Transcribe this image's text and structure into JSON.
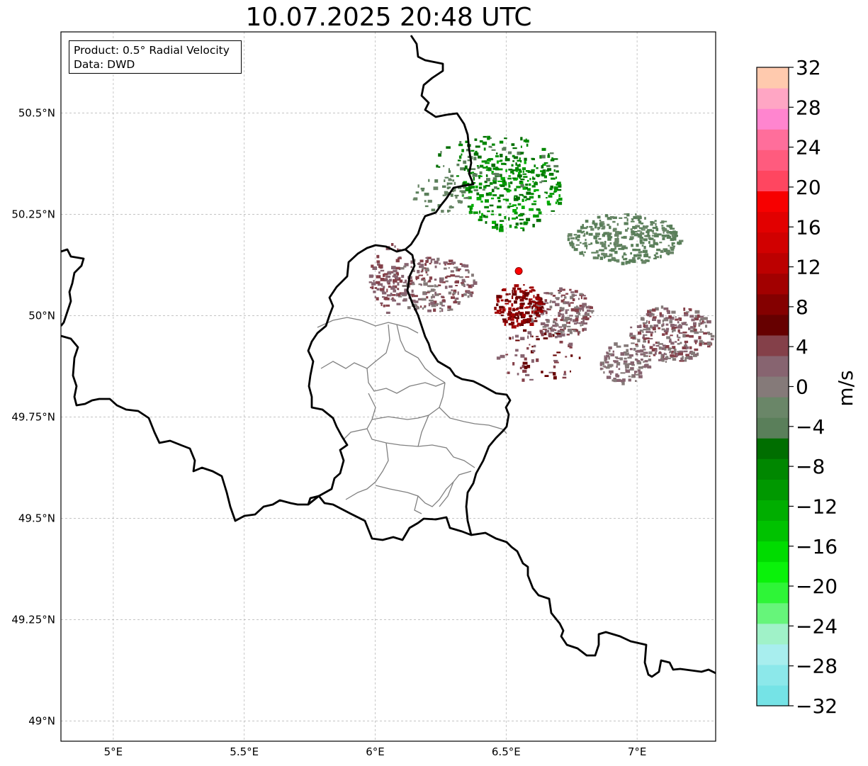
{
  "title": "10.07.2025 20:48 UTC",
  "info": {
    "product": "Product: 0.5° Radial Velocity",
    "data": "Data: DWD"
  },
  "map": {
    "lon_range": [
      4.8,
      7.3
    ],
    "lat_range": [
      48.95,
      50.7
    ],
    "x_ticks": [
      {
        "value": 5.0,
        "label": "5°E"
      },
      {
        "value": 5.5,
        "label": "5.5°E"
      },
      {
        "value": 6.0,
        "label": "6°E"
      },
      {
        "value": 6.5,
        "label": "6.5°E"
      },
      {
        "value": 7.0,
        "label": "7°E"
      }
    ],
    "y_ticks": [
      {
        "value": 50.5,
        "label": "50.5°N"
      },
      {
        "value": 50.25,
        "label": "50.25°N"
      },
      {
        "value": 50.0,
        "label": "50°N"
      },
      {
        "value": 49.75,
        "label": "49.75°N"
      },
      {
        "value": 49.5,
        "label": "49.5°N"
      },
      {
        "value": 49.25,
        "label": "49.25°N"
      },
      {
        "value": 49.0,
        "label": "49°N"
      }
    ],
    "radar_site": {
      "lon": 6.548,
      "lat": 50.11,
      "color": "#ff0000"
    },
    "grid": true
  },
  "colorbar": {
    "label": "m/s",
    "range": [
      -32,
      32
    ],
    "ticks": [
      {
        "value": 32,
        "label": "32"
      },
      {
        "value": 28,
        "label": "28"
      },
      {
        "value": 24,
        "label": "24"
      },
      {
        "value": 20,
        "label": "20"
      },
      {
        "value": 16,
        "label": "16"
      },
      {
        "value": 12,
        "label": "12"
      },
      {
        "value": 8,
        "label": "8"
      },
      {
        "value": 4,
        "label": "4"
      },
      {
        "value": 0,
        "label": "0"
      },
      {
        "value": -4,
        "label": "−4"
      },
      {
        "value": -8,
        "label": "−8"
      },
      {
        "value": -12,
        "label": "−12"
      },
      {
        "value": -16,
        "label": "−16"
      },
      {
        "value": -20,
        "label": "−20"
      },
      {
        "value": -24,
        "label": "−24"
      },
      {
        "value": -28,
        "label": "−28"
      },
      {
        "value": -32,
        "label": "−32"
      }
    ],
    "colors": [
      "#75e3e6",
      "#8ce8ea",
      "#a8eeee",
      "#a0f2c8",
      "#66f57a",
      "#2ef537",
      "#0af20a",
      "#00dc00",
      "#00c200",
      "#00ae00",
      "#009800",
      "#008700",
      "#006e00",
      "#5a7f5a",
      "#6a8668",
      "#857a79",
      "#876470",
      "#844049",
      "#660000",
      "#840000",
      "#a20000",
      "#bc0000",
      "#d10000",
      "#e20000",
      "#f70000",
      "#ff4660",
      "#ff5b7e",
      "#ff6e9b",
      "#ff85cf",
      "#ffa6c4",
      "#ffcaae"
    ]
  }
}
